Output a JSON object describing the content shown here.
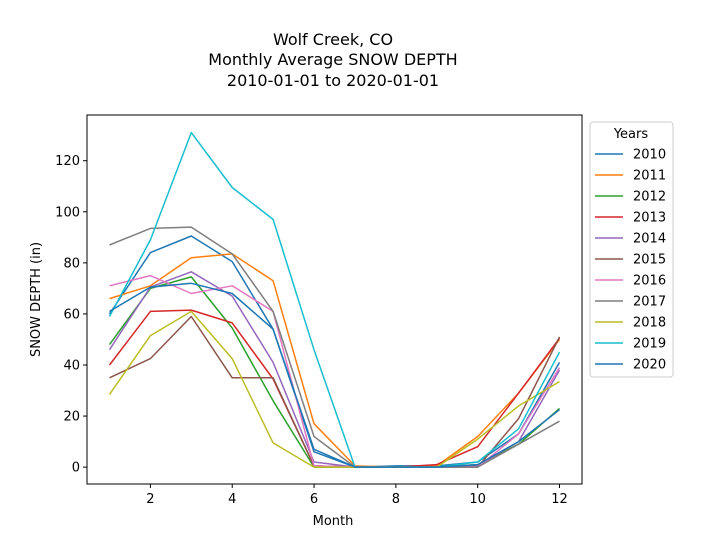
{
  "chart_data": {
    "type": "line",
    "title": [
      "Wolf Creek, CO",
      "Monthly Average SNOW DEPTH",
      "2010-01-01 to 2020-01-01"
    ],
    "xlabel": "Month",
    "ylabel": "SNOW DEPTH (in)",
    "xlim": [
      0.45,
      12.55
    ],
    "ylim": [
      -6.6,
      137.9
    ],
    "xticks": [
      2,
      4,
      6,
      8,
      10,
      12
    ],
    "yticks": [
      0,
      20,
      40,
      60,
      80,
      100,
      120
    ],
    "grid": false,
    "legend_title": "Years",
    "legend_position": "outside-right",
    "x": [
      1,
      2,
      3,
      4,
      5,
      6,
      7,
      8,
      9,
      10,
      11,
      12
    ],
    "series": [
      {
        "name": "2010",
        "color": "#1f77b4",
        "values": [
          60,
          84,
          90.5,
          80.5,
          54,
          6,
          0,
          0.5,
          0.5,
          2,
          13,
          41
        ]
      },
      {
        "name": "2011",
        "color": "#ff7f0e",
        "values": [
          66,
          71,
          82,
          83.5,
          73,
          17,
          0.5,
          0,
          0.5,
          12,
          29,
          50
        ]
      },
      {
        "name": "2012",
        "color": "#2ca02c",
        "values": [
          48,
          70,
          74.5,
          54.5,
          26,
          0,
          0,
          0,
          0,
          1,
          9,
          23
        ]
      },
      {
        "name": "2013",
        "color": "#d62728",
        "values": [
          40,
          61,
          61.5,
          56.5,
          34.5,
          0.5,
          0,
          0,
          1,
          8,
          29,
          50.5
        ]
      },
      {
        "name": "2014",
        "color": "#9467bd",
        "values": [
          46,
          70.5,
          76.5,
          67,
          41,
          2,
          0,
          0,
          0,
          0.5,
          10,
          38
        ]
      },
      {
        "name": "2015",
        "color": "#8c564b",
        "values": [
          35,
          42.5,
          59,
          35,
          35,
          0.5,
          0,
          0,
          0,
          0,
          19,
          51
        ]
      },
      {
        "name": "2016",
        "color": "#e377c2",
        "values": [
          71,
          75,
          68,
          71,
          61,
          0.5,
          0,
          0,
          0,
          0,
          13,
          39
        ]
      },
      {
        "name": "2017",
        "color": "#7f7f7f",
        "values": [
          87,
          93.5,
          94,
          83.5,
          61,
          12,
          0,
          0,
          0,
          0,
          9,
          18
        ]
      },
      {
        "name": "2018",
        "color": "#bcbd22",
        "values": [
          28.5,
          51.5,
          61,
          42.5,
          9.5,
          0,
          0,
          0,
          0,
          11,
          24,
          33.5
        ]
      },
      {
        "name": "2019",
        "color": "#17becf",
        "values": [
          59,
          89,
          131,
          109.5,
          97,
          46,
          0,
          0,
          0,
          2,
          15,
          45
        ]
      },
      {
        "name": "2020",
        "color": "#1f77b4",
        "values": [
          61,
          70.5,
          72,
          68,
          54,
          7,
          0,
          0,
          0,
          1,
          10,
          22.5
        ]
      }
    ]
  }
}
